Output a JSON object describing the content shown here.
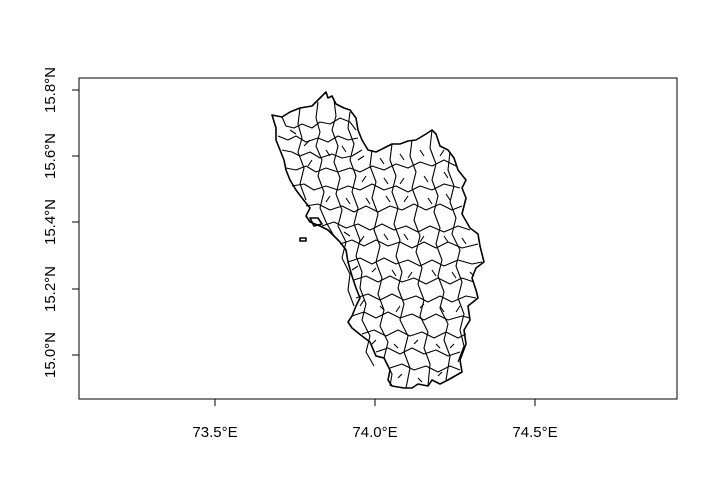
{
  "map": {
    "x_ticks": [
      {
        "value": 73.5,
        "label": "73.5°E"
      },
      {
        "value": 74.0,
        "label": "74.0°E"
      },
      {
        "value": 74.5,
        "label": "74.5°E"
      }
    ],
    "y_ticks": [
      {
        "value": 15.0,
        "label": "15.0°N"
      },
      {
        "value": 15.2,
        "label": "15.2°N"
      },
      {
        "value": 15.4,
        "label": "15.4°N"
      },
      {
        "value": 15.6,
        "label": "15.6°N"
      },
      {
        "value": 15.8,
        "label": "15.8°N"
      }
    ],
    "xlim": [
      73.09,
      74.95
    ],
    "ylim": [
      14.84,
      15.84
    ],
    "outline_color": "#000000",
    "fill_color": "#ffffff"
  }
}
